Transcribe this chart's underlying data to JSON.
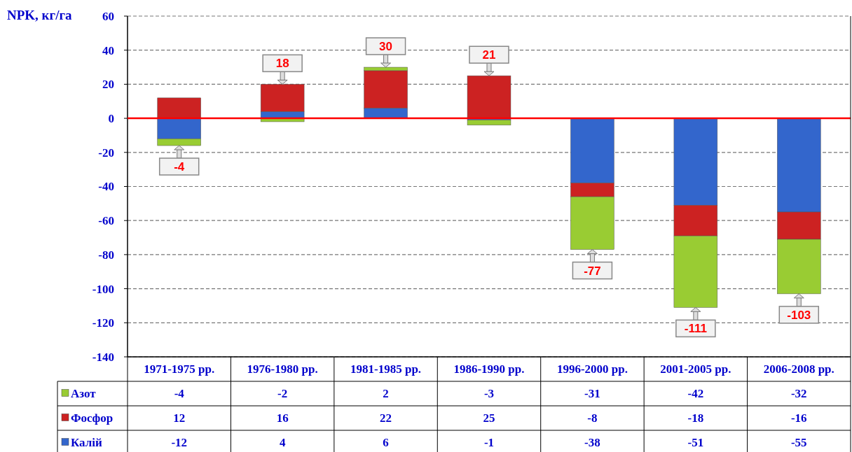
{
  "chart_data": {
    "type": "bar",
    "stacked": true,
    "ylabel": "NPK, кг/га",
    "categories": [
      "1971-1975 рр.",
      "1976-1980 рр.",
      "1981-1985 рр.",
      "1986-1990 рр.",
      "1996-2000 рр.",
      "2001-2005 рр.",
      "2006-2008 рр."
    ],
    "series": [
      {
        "name": "Калій",
        "color": "#3366cc",
        "values": [
          -12,
          4,
          6,
          -1,
          -38,
          -51,
          -55
        ]
      },
      {
        "name": "Фосфор",
        "color": "#cc2222",
        "values": [
          12,
          16,
          22,
          25,
          -8,
          -18,
          -16
        ]
      },
      {
        "name": "Азот",
        "color": "#99cc33",
        "values": [
          -4,
          -2,
          2,
          -3,
          -31,
          -42,
          -32
        ]
      }
    ],
    "totals": [
      "-4",
      "18",
      "30",
      "21",
      "-77",
      "-111",
      "-103"
    ],
    "ylim": [
      -140,
      60
    ],
    "yticks": [
      -140,
      -120,
      -100,
      -80,
      -60,
      -40,
      -20,
      0,
      20,
      40,
      60
    ],
    "grid": "y",
    "data_labels": true,
    "legend": "bottom",
    "ref_lines": [
      {
        "axis": "y",
        "value": 0,
        "color": "#ff0000"
      }
    ]
  }
}
